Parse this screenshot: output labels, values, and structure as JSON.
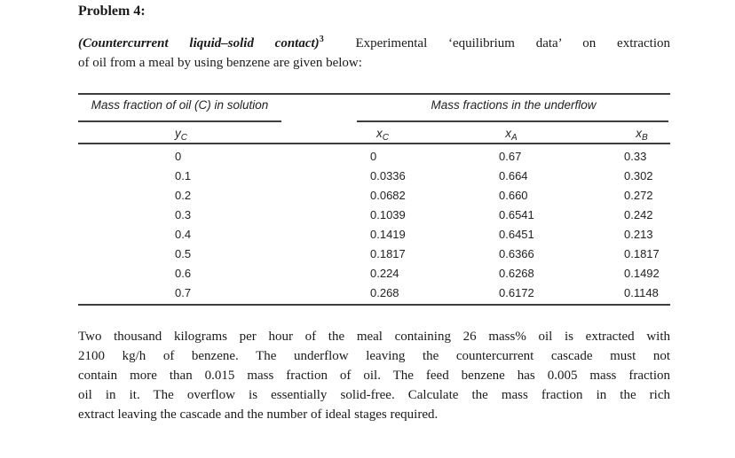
{
  "heading": "Problem 4:",
  "intro": {
    "emphasis": "(Countercurrent liquid–solid contact)",
    "superscript": "3",
    "line1_rest": "Experimental ‘equilibrium data’ on extraction",
    "line2": "of oil from a meal by using benzene are given below:"
  },
  "table": {
    "group_headers": {
      "solution": "Mass fraction of oil (C) in solution",
      "underflow": "Mass fractions in the underflow"
    },
    "symbols": [
      {
        "base": "y",
        "sub": "C"
      },
      {
        "base": "x",
        "sub": "C"
      },
      {
        "base": "x",
        "sub": "A"
      },
      {
        "base": "x",
        "sub": "B"
      }
    ],
    "rows": [
      [
        "0",
        "0",
        "0.67",
        "0.33"
      ],
      [
        "0.1",
        "0.0336",
        "0.664",
        "0.302"
      ],
      [
        "0.2",
        "0.0682",
        "0.660",
        "0.272"
      ],
      [
        "0.3",
        "0.1039",
        "0.6541",
        "0.242"
      ],
      [
        "0.4",
        "0.1419",
        "0.6451",
        "0.213"
      ],
      [
        "0.5",
        "0.1817",
        "0.6366",
        "0.1817"
      ],
      [
        "0.6",
        "0.224",
        "0.6268",
        "0.1492"
      ],
      [
        "0.7",
        "0.268",
        "0.6172",
        "0.1148"
      ]
    ]
  },
  "body": {
    "lines": [
      "Two thousand kilograms per hour of the meal containing 26 mass% oil is extracted with",
      "2100 kg/h of benzene. The underflow leaving the countercurrent cascade must not",
      "contain more than 0.015 mass fraction of oil. The feed benzene has 0.005 mass fraction",
      "oil in it. The overflow is essentially solid-free. Calculate the mass fraction in the rich",
      "extract leaving the cascade and the number of ideal stages required."
    ]
  },
  "ink_color": "#1a1a1a"
}
